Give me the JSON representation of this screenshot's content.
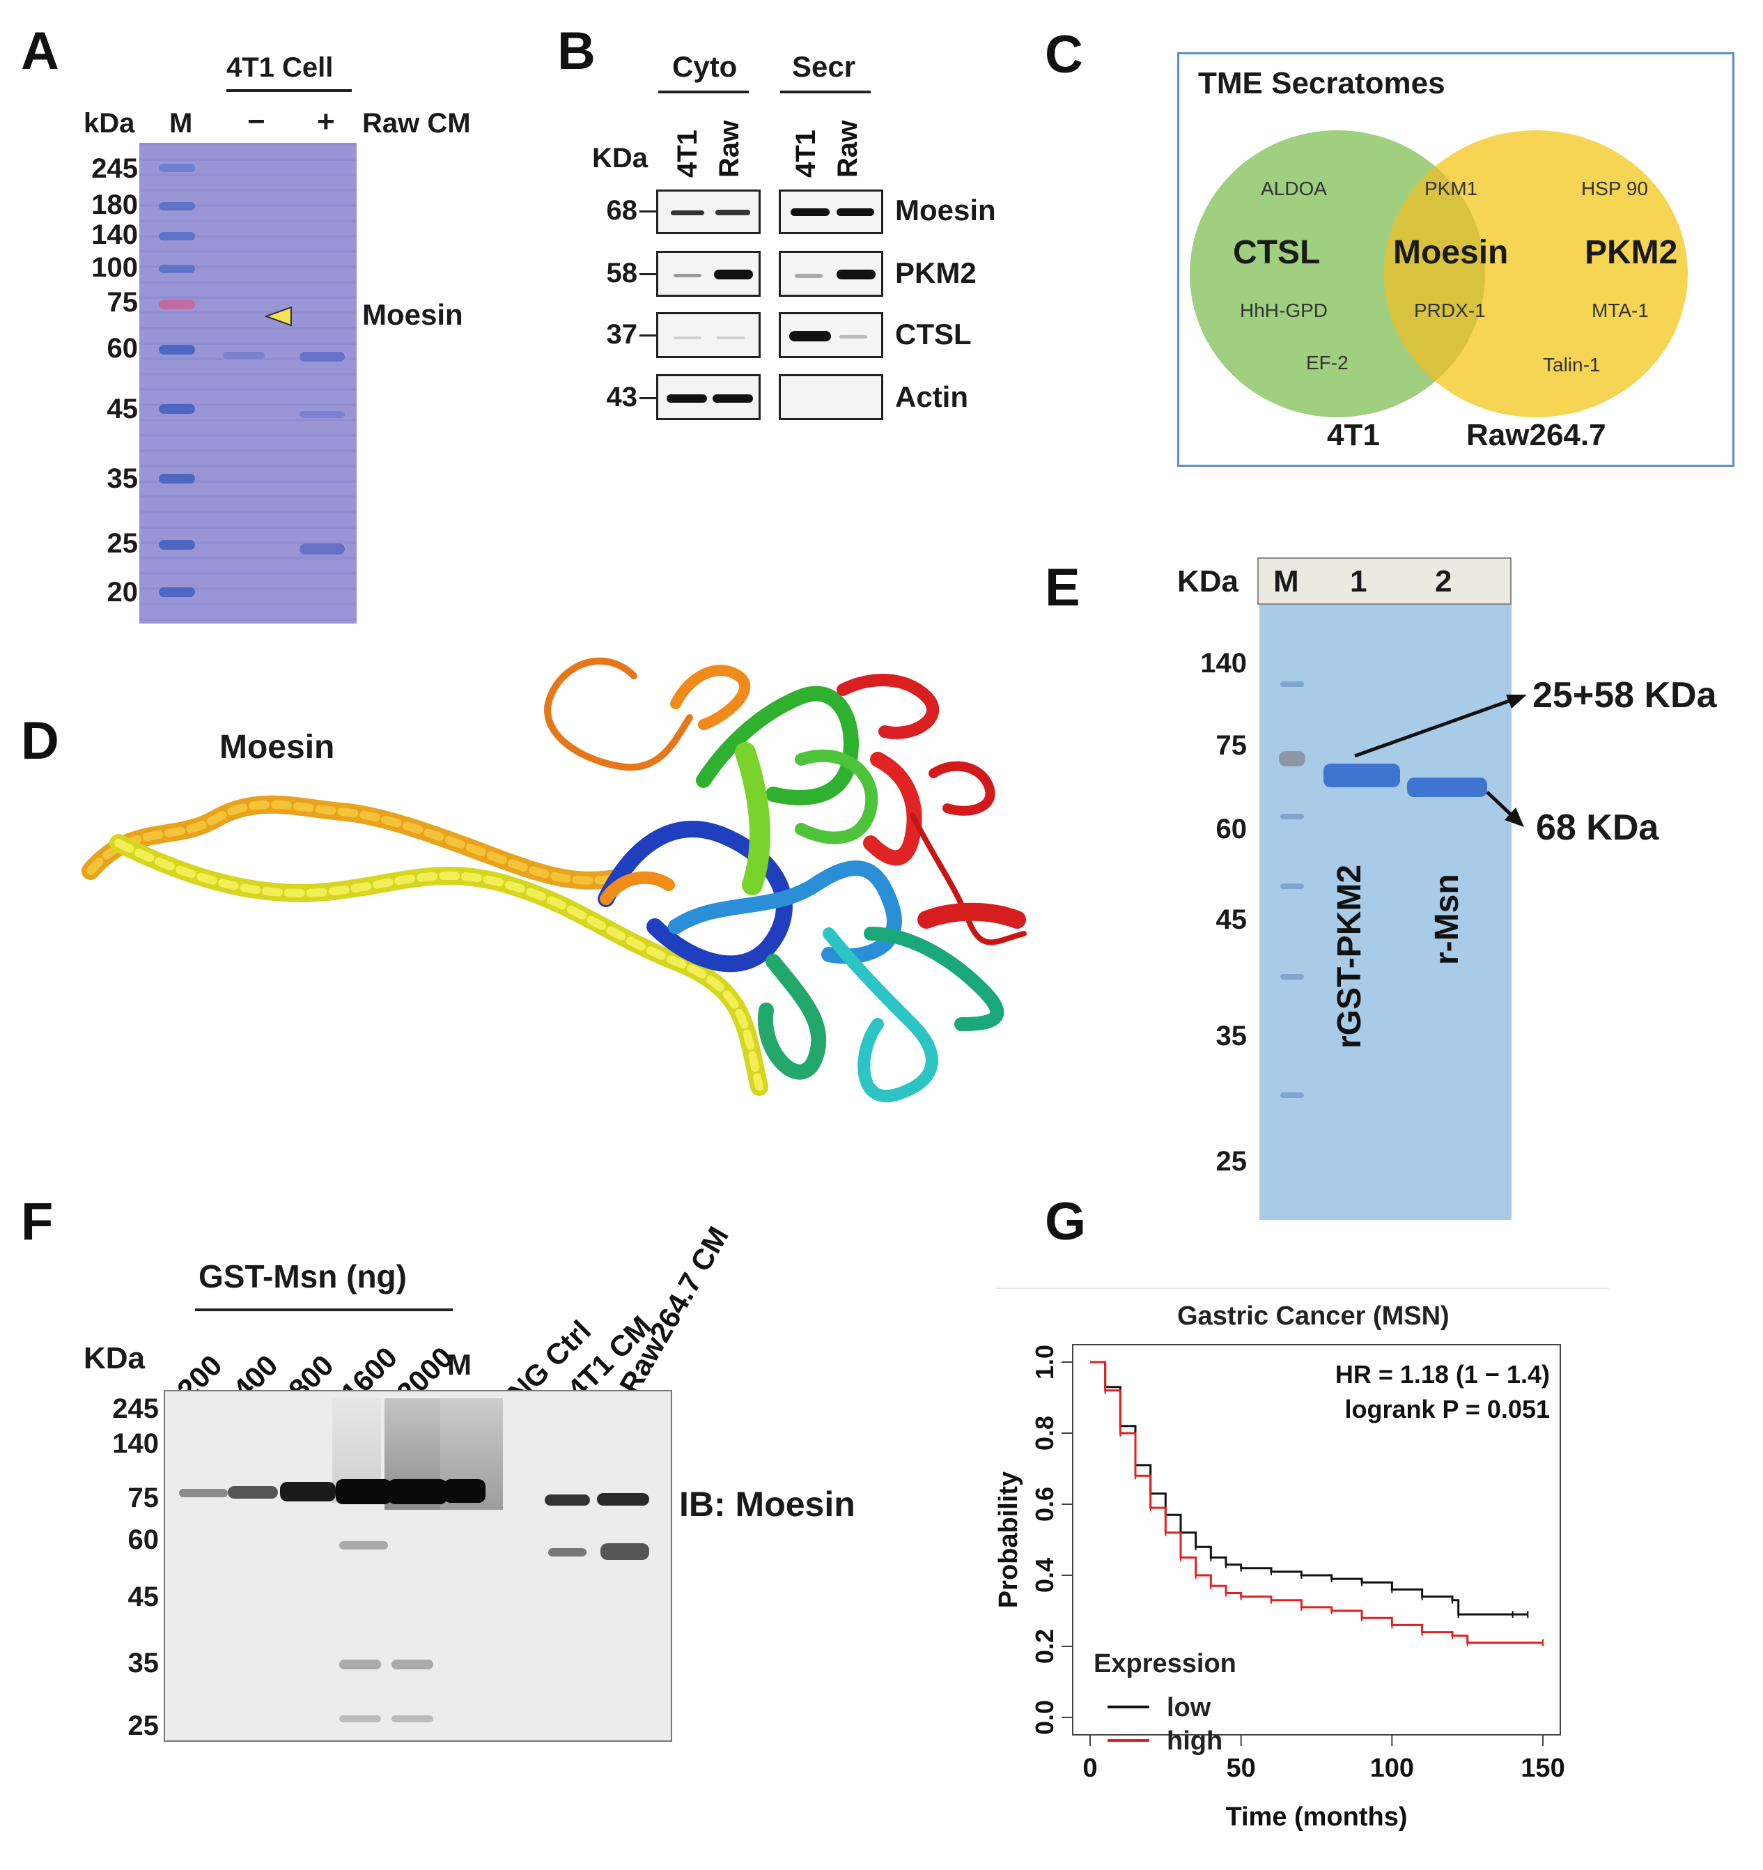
{
  "panels": {
    "a": "A",
    "b": "B",
    "c": "C",
    "d": "D",
    "e": "E",
    "f": "F",
    "g": "G"
  },
  "panel_a": {
    "group_label": "4T1 Cell",
    "kda_label": "kDa",
    "marker_lane": "M",
    "minus": "−",
    "plus": "+",
    "condition": "Raw CM",
    "mw_markers": [
      "245",
      "180",
      "140",
      "100",
      "75",
      "60",
      "45",
      "35",
      "25",
      "20"
    ],
    "band_annotation": "Moesin",
    "colors": {
      "gel": "#9a96d6",
      "marker": "#5d74c9",
      "marker_75": "#c46aa2",
      "arrowhead": "#f4e25a"
    }
  },
  "panel_b": {
    "kda_label": "KDa",
    "groups": [
      "Cyto",
      "Secr"
    ],
    "lanes": [
      "4T1",
      "Raw",
      "4T1",
      "Raw"
    ],
    "mw": [
      "68",
      "58",
      "37",
      "43"
    ],
    "rows": [
      "Moesin",
      "PKM2",
      "CTSL",
      "Actin"
    ]
  },
  "panel_c": {
    "title": "TME Secratomes",
    "left_set": "4T1",
    "right_set": "Raw264.7",
    "left_bold": "CTSL",
    "center_bold": "Moesin",
    "right_bold": "PKM2",
    "left_items": [
      "ALDOA",
      "HhH-GPD",
      "EF-2"
    ],
    "center_items": [
      "PKM1",
      "PRDX-1"
    ],
    "right_items": [
      "HSP 90",
      "MTA-1",
      "Talin-1"
    ],
    "colors": {
      "left": "#9fcf7f",
      "right": "#f5d553",
      "overlap": "#d9c23e",
      "frame": "#5f8fc2"
    }
  },
  "panel_d": {
    "title": "Moesin",
    "icon": "protein-ribbon-structure"
  },
  "panel_e": {
    "kda_label": "KDa",
    "lanes": [
      "M",
      "1",
      "2"
    ],
    "mw": [
      "140",
      "75",
      "60",
      "45",
      "35",
      "25"
    ],
    "lane_labels": [
      "rGST-PKM2",
      "r-Msn"
    ],
    "arrow_labels": [
      "25+58 KDa",
      "68 KDa"
    ],
    "colors": {
      "gel": "#a8cbe8",
      "band": "#3f74d0"
    }
  },
  "panel_f": {
    "header": "GST-Msn (ng)",
    "kda_label": "KDa",
    "lanes": [
      "200",
      "400",
      "800",
      "1600",
      "2000",
      "M",
      "NG Ctrl",
      "4T1 CM",
      "Raw264.7 CM"
    ],
    "mw": [
      "245",
      "140",
      "75",
      "60",
      "45",
      "35",
      "25"
    ],
    "ib_label": "IB: Moesin"
  },
  "panel_g": {
    "chart_data": {
      "type": "line",
      "title": "Gastric Cancer (MSN)",
      "xlabel": "Time (months)",
      "ylabel": "Probability",
      "xlim": [
        0,
        150
      ],
      "ylim": [
        0.0,
        1.0
      ],
      "xticks": [
        "0",
        "50",
        "100",
        "150"
      ],
      "yticks": [
        "0.0",
        "0.2",
        "0.4",
        "0.6",
        "0.8",
        "1.0"
      ],
      "annotations": [
        "HR = 1.18 (1 − 1.4)",
        "logrank P = 0.051"
      ],
      "legend_title": "Expression",
      "legend_position": "bottom-left",
      "series": [
        {
          "name": "low",
          "color": "#111111",
          "x": [
            0,
            5,
            10,
            15,
            20,
            25,
            30,
            35,
            40,
            45,
            50,
            60,
            70,
            80,
            90,
            100,
            110,
            120,
            122,
            140,
            145
          ],
          "y": [
            1.0,
            0.93,
            0.82,
            0.71,
            0.63,
            0.57,
            0.52,
            0.48,
            0.45,
            0.43,
            0.42,
            0.41,
            0.4,
            0.39,
            0.38,
            0.36,
            0.34,
            0.33,
            0.29,
            0.29,
            0.29
          ]
        },
        {
          "name": "high",
          "color": "#e02020",
          "x": [
            0,
            5,
            10,
            15,
            20,
            25,
            30,
            35,
            40,
            45,
            50,
            60,
            70,
            80,
            90,
            100,
            110,
            120,
            125,
            150
          ],
          "y": [
            1.0,
            0.92,
            0.8,
            0.68,
            0.59,
            0.52,
            0.45,
            0.4,
            0.37,
            0.35,
            0.34,
            0.33,
            0.31,
            0.3,
            0.28,
            0.26,
            0.24,
            0.23,
            0.21,
            0.21
          ]
        }
      ]
    }
  }
}
